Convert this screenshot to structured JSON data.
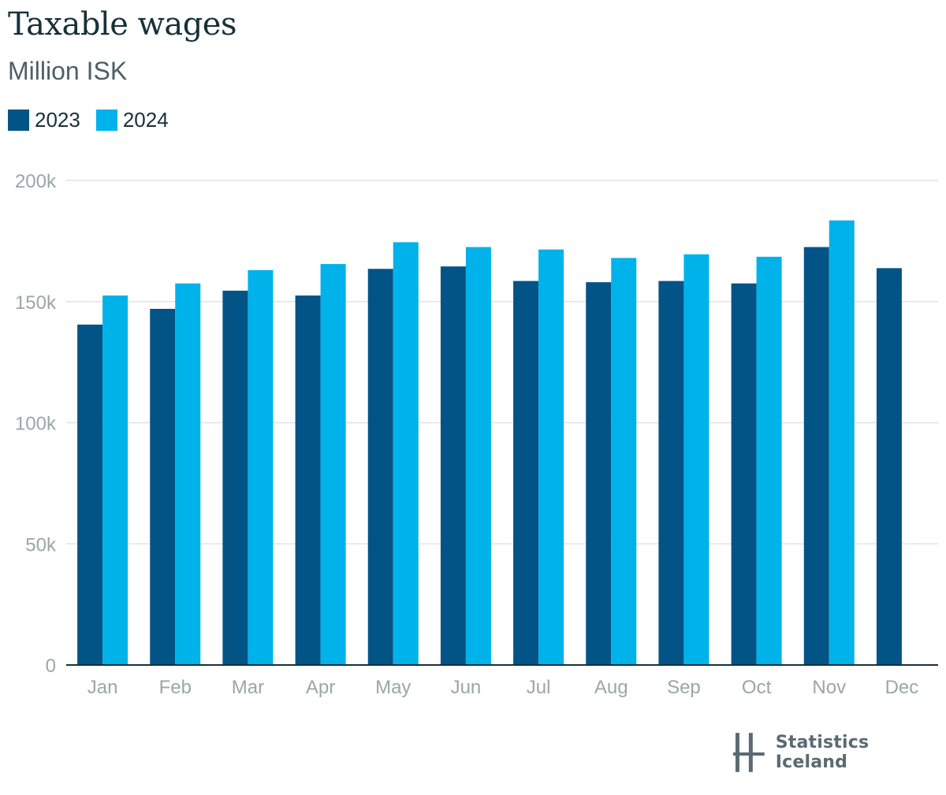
{
  "header": {
    "title": "Taxable wages",
    "subtitle": "Million ISK"
  },
  "legend": [
    {
      "label": "2023",
      "color": "#035486"
    },
    {
      "label": "2024",
      "color": "#00b2ea"
    }
  ],
  "brand": {
    "name": "Statistics Iceland",
    "icon": "statistics-iceland-logo-icon"
  },
  "chart_data": {
    "type": "bar",
    "title": "Taxable wages",
    "subtitle": "Million ISK",
    "categories": [
      "Jan",
      "Feb",
      "Mar",
      "Apr",
      "May",
      "Jun",
      "Jul",
      "Aug",
      "Sep",
      "Oct",
      "Nov",
      "Dec"
    ],
    "series": [
      {
        "name": "2023",
        "color": "#035486",
        "values": [
          140500,
          147000,
          154500,
          152500,
          163500,
          164500,
          158500,
          158000,
          158500,
          157500,
          172500,
          163800
        ]
      },
      {
        "name": "2024",
        "color": "#00b2ea",
        "values": [
          152500,
          157500,
          163000,
          165500,
          174500,
          172500,
          171500,
          168000,
          169500,
          168500,
          183500,
          null
        ]
      }
    ],
    "ylim": [
      0,
      200000
    ],
    "yticks": [
      0,
      50000,
      100000,
      150000,
      200000
    ],
    "ytick_labels": [
      "0",
      "50k",
      "100k",
      "150k",
      "200k"
    ],
    "grid": true,
    "legend_position": "top-left"
  }
}
